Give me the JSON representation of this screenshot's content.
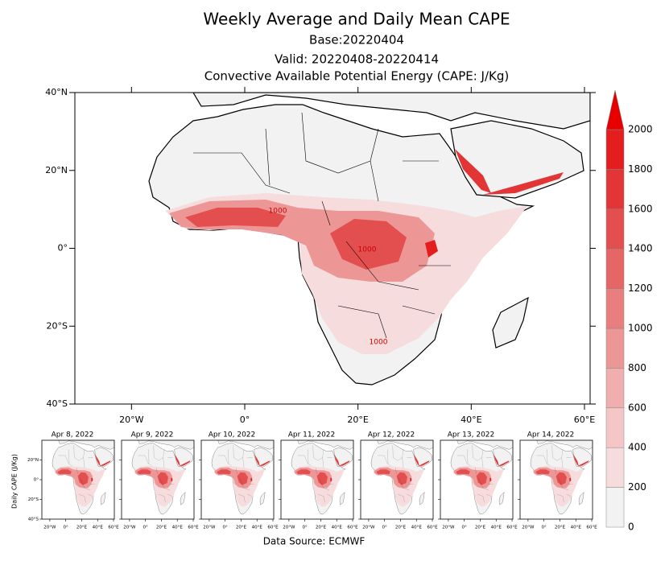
{
  "chart_data": {
    "type": "map",
    "title": "Weekly Average and Daily Mean CAPE",
    "base": "Base:20220404",
    "valid": "Valid: 20220408-20220414",
    "subtitle": "Convective Available Potential Energy (CAPE: J/Kg)",
    "xlim": [
      -30,
      61
    ],
    "ylim": [
      -40,
      40
    ],
    "xticks": [
      {
        "value": -20,
        "label": "20°W"
      },
      {
        "value": 0,
        "label": "0°"
      },
      {
        "value": 20,
        "label": "20°E"
      },
      {
        "value": 40,
        "label": "40°E"
      },
      {
        "value": 60,
        "label": "60°E"
      }
    ],
    "yticks": [
      {
        "value": 40,
        "label": "40°N"
      },
      {
        "value": 20,
        "label": "20°N"
      },
      {
        "value": 0,
        "label": "0°"
      },
      {
        "value": -20,
        "label": "20°S"
      },
      {
        "value": -40,
        "label": "40°S"
      }
    ],
    "contour_labels": [
      "1000",
      "1000",
      "1000"
    ],
    "colorbar": {
      "levels": [
        0,
        200,
        400,
        600,
        800,
        1000,
        1200,
        1400,
        1600,
        1800,
        2000
      ],
      "colors": [
        "#f2f2f2",
        "#f6dcdc",
        "#f4c6c6",
        "#f0aeae",
        "#ec9696",
        "#e97e7e",
        "#e66666",
        "#e34e4e",
        "#e23636",
        "#e41e1e"
      ],
      "extend_color": "#e60000"
    },
    "panels": [
      "Apr 8, 2022",
      "Apr 9, 2022",
      "Apr 10, 2022",
      "Apr 11, 2022",
      "Apr 12, 2022",
      "Apr 13, 2022",
      "Apr 14, 2022"
    ],
    "panel_ylabel": "Daily CAPE (J/Kg)",
    "panel_xticks": [
      {
        "value": -20,
        "label": "20°W"
      },
      {
        "value": 0,
        "label": "0°"
      },
      {
        "value": 20,
        "label": "20°E"
      },
      {
        "value": 40,
        "label": "40°E"
      },
      {
        "value": 60,
        "label": "60°E"
      }
    ],
    "panel_yticks": [
      {
        "value": 20,
        "label": "20°N"
      },
      {
        "value": 0,
        "label": "0°"
      },
      {
        "value": -20,
        "label": "20°S"
      },
      {
        "value": -40,
        "label": "40°S"
      }
    ],
    "source": "Data Source: ECMWF"
  }
}
